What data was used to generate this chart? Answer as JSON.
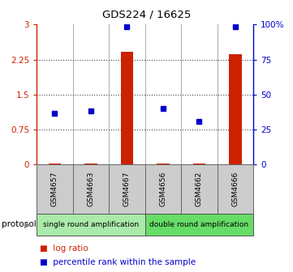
{
  "title": "GDS224 / 16625",
  "samples": [
    "GSM4657",
    "GSM4663",
    "GSM4667",
    "GSM4656",
    "GSM4662",
    "GSM4666"
  ],
  "log_ratio": [
    0.03,
    0.03,
    2.42,
    0.03,
    0.03,
    2.36
  ],
  "percentile_rank": [
    1.1,
    1.15,
    2.96,
    1.2,
    0.93,
    2.96
  ],
  "protocol_groups": [
    {
      "label": "single round amplification",
      "start": 0,
      "end": 3,
      "color": "#aaeaaa"
    },
    {
      "label": "double round amplification",
      "start": 3,
      "end": 6,
      "color": "#66dd66"
    }
  ],
  "left_yticks": [
    0,
    0.75,
    1.5,
    2.25,
    3
  ],
  "right_yticks": [
    0,
    25,
    50,
    75,
    100
  ],
  "right_yticklabels": [
    "0",
    "25",
    "50",
    "75",
    "100%"
  ],
  "bar_color": "#cc2200",
  "dot_color": "#0000cc",
  "grid_color": "#444444",
  "left_ycolor": "#cc2200",
  "right_ycolor": "#0000cc",
  "bg_color": "#ffffff",
  "sample_box_color": "#cccccc",
  "sample_box_edge": "#666666",
  "ylim": [
    0,
    3
  ],
  "right_ylim": [
    0,
    100
  ],
  "bar_width": 0.35
}
